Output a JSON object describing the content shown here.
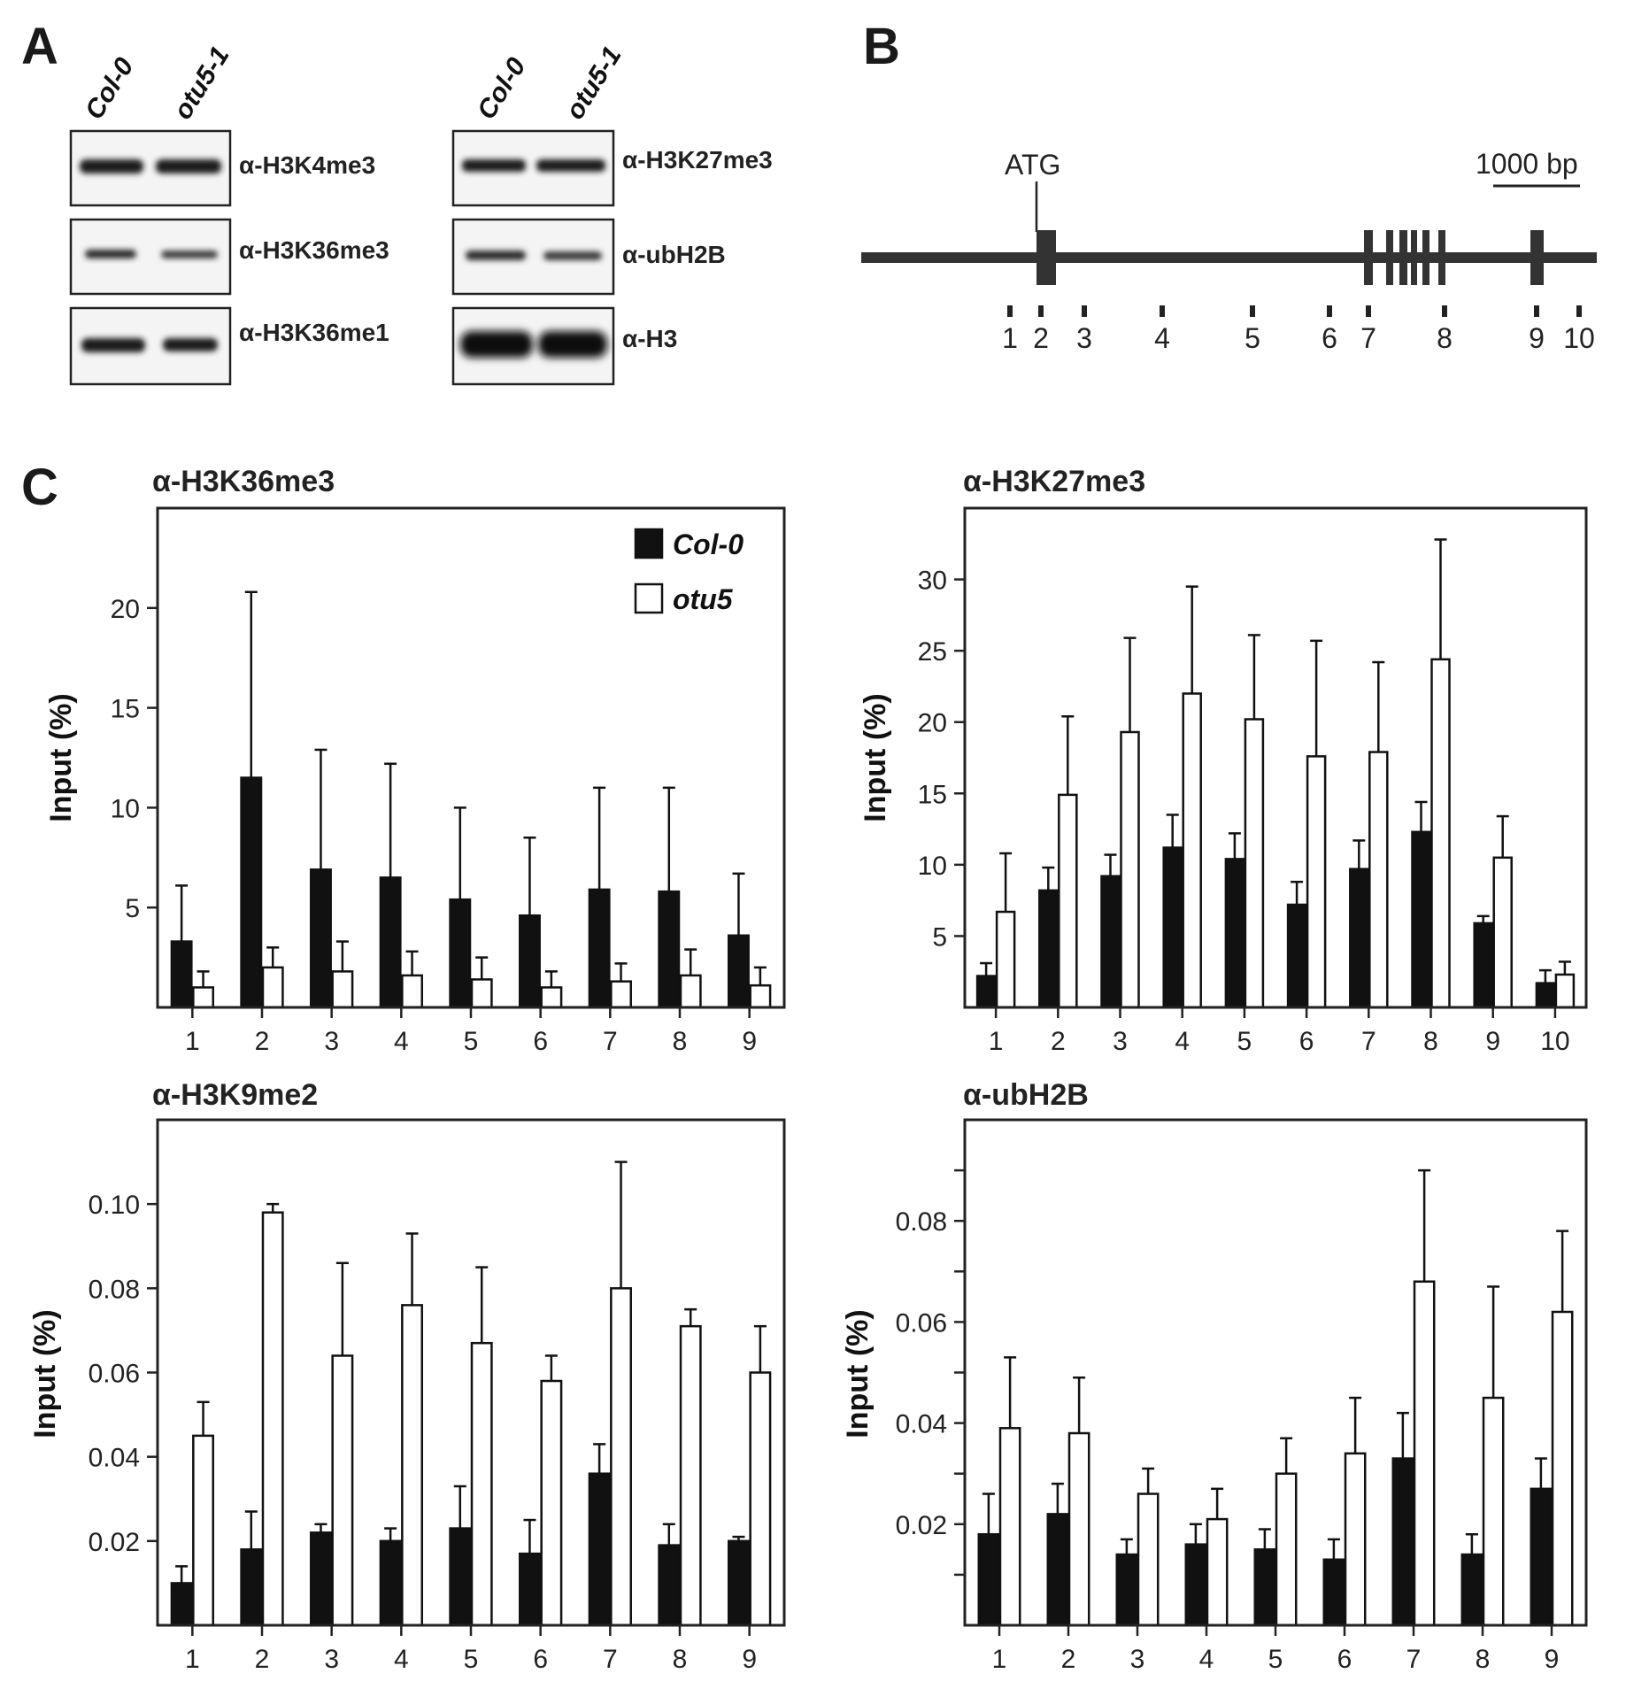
{
  "figure": {
    "panel_labels": [
      "A",
      "B",
      "C"
    ],
    "blots": {
      "lanes": [
        "Col-0",
        "otu5-1"
      ],
      "left": [
        "α-H3K4me3",
        "α-H3K36me3",
        "α-H3K36me1"
      ],
      "right": [
        "α-H3K27me3",
        "α-ubH2B",
        "α-H3"
      ]
    },
    "gene": {
      "start_label": "ATG",
      "scale_label": "1000 bp",
      "amplicons": [
        "1",
        "2",
        "3",
        "4",
        "5",
        "6",
        "7",
        "8",
        "9",
        "10"
      ]
    }
  },
  "legend": {
    "series": [
      "Col-0",
      "otu5"
    ]
  },
  "chart_data": [
    {
      "type": "bar",
      "title": "α-H3K36me3",
      "ylabel": "Input (%)",
      "xlabel": "",
      "categories": [
        "1",
        "2",
        "3",
        "4",
        "5",
        "6",
        "7",
        "8",
        "9"
      ],
      "ylim": [
        0,
        25
      ],
      "yticks": [
        5,
        10,
        15,
        20
      ],
      "ytick_labels": [
        "5",
        "10",
        "15",
        "20"
      ],
      "series": [
        {
          "name": "Col-0",
          "values": [
            3.3,
            11.5,
            6.9,
            6.5,
            5.4,
            4.6,
            5.9,
            5.8,
            3.6
          ],
          "errors": [
            2.8,
            9.3,
            6.0,
            5.7,
            4.6,
            3.9,
            5.1,
            5.2,
            3.1
          ]
        },
        {
          "name": "otu5",
          "values": [
            1.0,
            2.0,
            1.8,
            1.6,
            1.4,
            1.0,
            1.3,
            1.6,
            1.1
          ],
          "errors": [
            0.8,
            1.0,
            1.5,
            1.2,
            1.1,
            0.8,
            0.9,
            1.3,
            0.9
          ]
        }
      ],
      "legend": "top-right"
    },
    {
      "type": "bar",
      "title": "α-H3K27me3",
      "ylabel": "Input (%)",
      "xlabel": "",
      "categories": [
        "1",
        "2",
        "3",
        "4",
        "5",
        "6",
        "7",
        "8",
        "9",
        "10"
      ],
      "ylim": [
        0,
        35
      ],
      "yticks": [
        5,
        10,
        15,
        20,
        25,
        30
      ],
      "ytick_labels": [
        "5",
        "10",
        "15",
        "20",
        "25",
        "30"
      ],
      "series": [
        {
          "name": "Col-0",
          "values": [
            2.2,
            8.2,
            9.2,
            11.2,
            10.4,
            7.2,
            9.7,
            12.3,
            5.9,
            1.7
          ],
          "errors": [
            0.9,
            1.6,
            1.5,
            2.3,
            1.8,
            1.6,
            2.0,
            2.1,
            0.5,
            0.9
          ]
        },
        {
          "name": "otu5",
          "values": [
            6.7,
            14.9,
            19.3,
            22.0,
            20.2,
            17.6,
            17.9,
            24.4,
            10.5,
            2.3
          ],
          "errors": [
            4.1,
            5.5,
            6.6,
            7.5,
            5.9,
            8.1,
            6.3,
            8.4,
            2.9,
            0.9
          ]
        }
      ]
    },
    {
      "type": "bar",
      "title": "α-H3K9me2",
      "ylabel": "Input (%)",
      "xlabel": "",
      "categories": [
        "1",
        "2",
        "3",
        "4",
        "5",
        "6",
        "7",
        "8",
        "9"
      ],
      "ylim": [
        0,
        0.12
      ],
      "yticks": [
        0.02,
        0.04,
        0.06,
        0.08,
        0.1
      ],
      "ytick_labels": [
        "0.02",
        "0.04",
        "0.06",
        "0.08",
        "0.10"
      ],
      "series": [
        {
          "name": "Col-0",
          "values": [
            0.01,
            0.018,
            0.022,
            0.02,
            0.023,
            0.017,
            0.036,
            0.019,
            0.02
          ],
          "errors": [
            0.004,
            0.009,
            0.002,
            0.003,
            0.01,
            0.008,
            0.007,
            0.005,
            0.001
          ]
        },
        {
          "name": "otu5",
          "values": [
            0.045,
            0.098,
            0.064,
            0.076,
            0.067,
            0.058,
            0.08,
            0.071,
            0.06
          ],
          "errors": [
            0.008,
            0.002,
            0.022,
            0.017,
            0.018,
            0.006,
            0.03,
            0.004,
            0.011
          ]
        }
      ]
    },
    {
      "type": "bar",
      "title": "α-ubH2B",
      "ylabel": "Input (%)",
      "xlabel": "",
      "categories": [
        "1",
        "2",
        "3",
        "4",
        "5",
        "6",
        "7",
        "8",
        "9"
      ],
      "ylim": [
        0,
        0.1
      ],
      "yticks": [
        0.01,
        0.02,
        0.03,
        0.04,
        0.05,
        0.06,
        0.07,
        0.08,
        0.09
      ],
      "ytick_labels": [
        "",
        "0.02",
        "",
        "0.04",
        "",
        "0.06",
        "",
        "0.08",
        ""
      ],
      "series": [
        {
          "name": "Col-0",
          "values": [
            0.018,
            0.022,
            0.014,
            0.016,
            0.015,
            0.013,
            0.033,
            0.014,
            0.027
          ],
          "errors": [
            0.008,
            0.006,
            0.003,
            0.004,
            0.004,
            0.004,
            0.009,
            0.004,
            0.006
          ]
        },
        {
          "name": "otu5",
          "values": [
            0.039,
            0.038,
            0.026,
            0.021,
            0.03,
            0.034,
            0.068,
            0.045,
            0.062
          ],
          "errors": [
            0.014,
            0.011,
            0.005,
            0.006,
            0.007,
            0.011,
            0.022,
            0.022,
            0.016
          ]
        }
      ]
    }
  ]
}
